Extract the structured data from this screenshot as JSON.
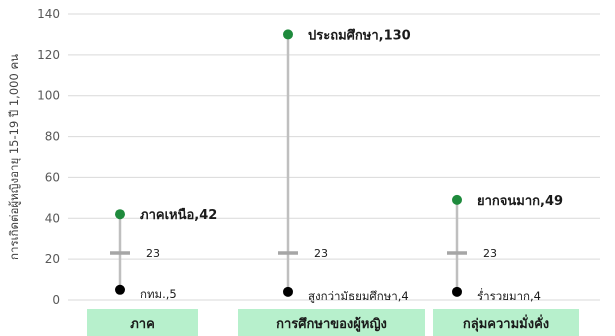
{
  "chart_data": {
    "type": "range",
    "ylabel": "การเกิดต่อผู้หญิงอายุ 15-19 ปี 1,000 คน",
    "ylim": [
      0,
      140
    ],
    "yticks": [
      0,
      20,
      40,
      60,
      80,
      100,
      120,
      140
    ],
    "average": 23,
    "average_label": "23",
    "grid": true,
    "colors": {
      "max_point": "#1e8a3c",
      "min_point": "#000000",
      "range_line": "#bfbfbf",
      "average_mark": "#a6a6a6",
      "category_box": "#b7f0cc",
      "gridline": "#d9d9d9"
    },
    "groups": [
      {
        "category": "ภาค",
        "max": {
          "label": "ภาคเหนือ,42",
          "value": 42
        },
        "min": {
          "label": "กทม.,5",
          "value": 5
        }
      },
      {
        "category": "การศึกษาของผู้หญิง",
        "max": {
          "label": "ประถมศึกษา,130",
          "value": 130
        },
        "min": {
          "label": "สูงกว่ามัธยมศึกษา,4",
          "value": 4
        }
      },
      {
        "category": "กลุ่มความมั่งคั่ง",
        "max": {
          "label": "ยากจนมาก,49",
          "value": 49
        },
        "min": {
          "label": "ร่ำรวยมาก,4",
          "value": 4
        }
      }
    ]
  }
}
